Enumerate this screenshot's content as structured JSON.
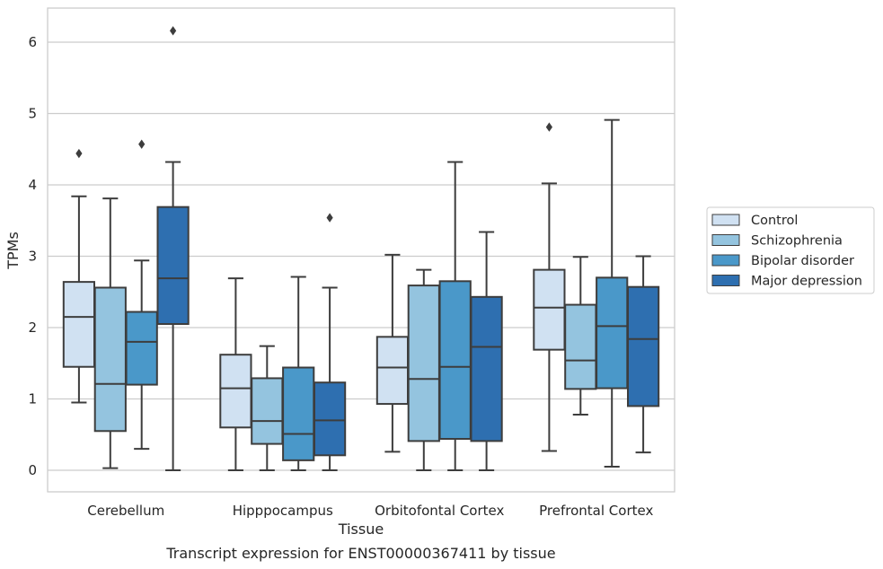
{
  "caption": "Transcript expression for ENST00000367411 by tissue",
  "chart_data": {
    "type": "box",
    "xlabel": "Tissue",
    "ylabel": "TPMs",
    "ylim": [
      -0.3,
      6.5
    ],
    "yticks": [
      0,
      1,
      2,
      3,
      4,
      5,
      6
    ],
    "grid": "horizontal",
    "legend_position": "right",
    "categories": [
      "Cerebellum",
      "Hipppocampus",
      "Orbitofontal Cortex",
      "Prefrontal Cortex"
    ],
    "series": [
      {
        "name": "Control",
        "color": "#d0e1f2",
        "boxes": [
          {
            "whislo": 0.95,
            "q1": 1.45,
            "med": 2.15,
            "q3": 2.64,
            "whishi": 3.84,
            "fliers": [
              4.44
            ]
          },
          {
            "whislo": 0.0,
            "q1": 0.6,
            "med": 1.15,
            "q3": 1.62,
            "whishi": 2.69,
            "fliers": []
          },
          {
            "whislo": 0.26,
            "q1": 0.93,
            "med": 1.44,
            "q3": 1.87,
            "whishi": 3.02,
            "fliers": []
          },
          {
            "whislo": 0.27,
            "q1": 1.69,
            "med": 2.28,
            "q3": 2.81,
            "whishi": 4.02,
            "fliers": [
              4.81
            ]
          }
        ]
      },
      {
        "name": "Schizophrenia",
        "color": "#94c4df",
        "boxes": [
          {
            "whislo": 0.03,
            "q1": 0.55,
            "med": 1.21,
            "q3": 2.56,
            "whishi": 3.81,
            "fliers": []
          },
          {
            "whislo": 0.0,
            "q1": 0.37,
            "med": 0.69,
            "q3": 1.29,
            "whishi": 1.74,
            "fliers": []
          },
          {
            "whislo": 0.0,
            "q1": 0.41,
            "med": 1.28,
            "q3": 2.59,
            "whishi": 2.81,
            "fliers": []
          },
          {
            "whislo": 0.78,
            "q1": 1.14,
            "med": 1.54,
            "q3": 2.32,
            "whishi": 2.99,
            "fliers": []
          }
        ]
      },
      {
        "name": "Bipolar disorder",
        "color": "#4a98c9",
        "boxes": [
          {
            "whislo": 0.3,
            "q1": 1.2,
            "med": 1.8,
            "q3": 2.22,
            "whishi": 2.94,
            "fliers": [
              4.57
            ]
          },
          {
            "whislo": 0.0,
            "q1": 0.14,
            "med": 0.51,
            "q3": 1.44,
            "whishi": 2.71,
            "fliers": []
          },
          {
            "whislo": 0.0,
            "q1": 0.44,
            "med": 1.45,
            "q3": 2.65,
            "whishi": 4.32,
            "fliers": []
          },
          {
            "whislo": 0.05,
            "q1": 1.15,
            "med": 2.02,
            "q3": 2.7,
            "whishi": 4.91,
            "fliers": []
          }
        ]
      },
      {
        "name": "Major depression",
        "color": "#2e6fb0",
        "boxes": [
          {
            "whislo": 0.0,
            "q1": 2.05,
            "med": 2.69,
            "q3": 3.69,
            "whishi": 4.32,
            "fliers": [
              6.16
            ]
          },
          {
            "whislo": 0.0,
            "q1": 0.21,
            "med": 0.7,
            "q3": 1.23,
            "whishi": 2.56,
            "fliers": [
              3.54
            ]
          },
          {
            "whislo": 0.0,
            "q1": 0.41,
            "med": 1.73,
            "q3": 2.43,
            "whishi": 3.34,
            "fliers": []
          },
          {
            "whislo": 0.25,
            "q1": 0.9,
            "med": 1.84,
            "q3": 2.57,
            "whishi": 3.0,
            "fliers": []
          }
        ]
      }
    ]
  }
}
